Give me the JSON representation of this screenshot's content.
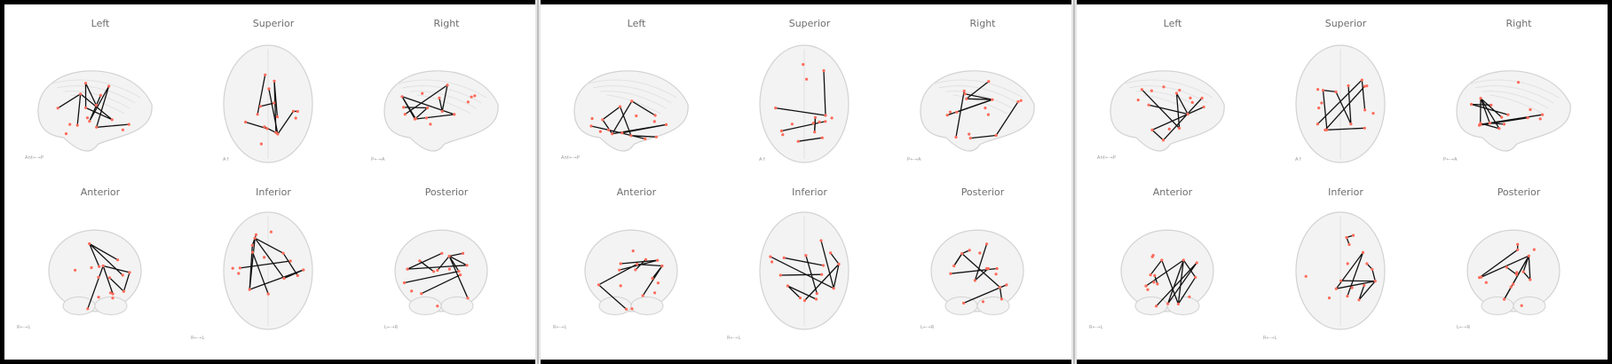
{
  "panels": [
    {
      "views": [
        {
          "title": "Left",
          "orient_label": "Ant←→P"
        },
        {
          "title": "Superior",
          "orient_label": "A↑"
        },
        {
          "title": "Right",
          "orient_label": "P←→A"
        },
        {
          "title": "Anterior",
          "orient_label": "R←→L"
        },
        {
          "title": "Inferior",
          "orient_label": "R←→L"
        },
        {
          "title": "Posterior",
          "orient_label": "L←→R"
        }
      ]
    },
    {
      "views": [
        {
          "title": "Left",
          "orient_label": "Ant←→P"
        },
        {
          "title": "Superior",
          "orient_label": "A↑"
        },
        {
          "title": "Right",
          "orient_label": "P←→A"
        },
        {
          "title": "Anterior",
          "orient_label": "R←→L"
        },
        {
          "title": "Inferior",
          "orient_label": "R←→L"
        },
        {
          "title": "Posterior",
          "orient_label": "L←→R"
        }
      ]
    },
    {
      "views": [
        {
          "title": "Left",
          "orient_label": "Ant←→P"
        },
        {
          "title": "Superior",
          "orient_label": "A↑"
        },
        {
          "title": "Right",
          "orient_label": "P←→A"
        },
        {
          "title": "Anterior",
          "orient_label": "R←→L"
        },
        {
          "title": "Inferior",
          "orient_label": "R←→L"
        },
        {
          "title": "Posterior",
          "orient_label": "L←→R"
        }
      ]
    }
  ],
  "colors": {
    "node": "#ff6b5a",
    "edge": "#111111",
    "brain_fill": "#f3f3f3",
    "brain_stroke": "#d2d2d2",
    "title": "#6e6e6e"
  }
}
